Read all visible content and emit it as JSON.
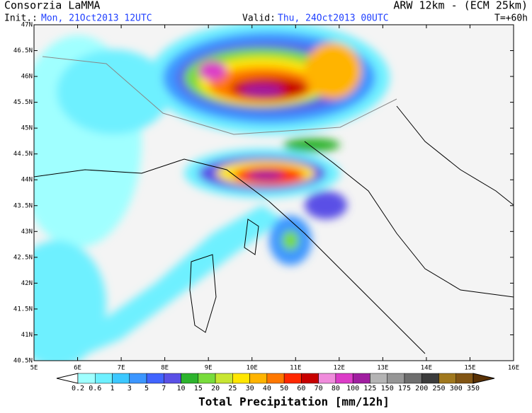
{
  "header": {
    "org": "Consorzia LaMMA",
    "model": "ARW 12km - (ECM 25km)",
    "init_label": "Init.:",
    "init": "Mon, 21Oct2013 12UTC",
    "valid_label": "Valid:",
    "valid": "Thu, 24Oct2013 00UTC",
    "step": "T=+60h"
  },
  "map": {
    "lat_labels": [
      "47N",
      "46.5N",
      "46N",
      "45.5N",
      "45N",
      "44.5N",
      "44N",
      "43.5N",
      "43N",
      "42.5N",
      "42N",
      "41.5N",
      "41N",
      "40.5N"
    ],
    "lon_labels": [
      "5E",
      "6E",
      "7E",
      "8E",
      "9E",
      "10E",
      "11E",
      "12E",
      "13E",
      "14E",
      "15E",
      "16E"
    ]
  },
  "legend": {
    "title": "Total Precipitation [mm/12h]",
    "levels": [
      "0.2",
      "0.6",
      "1",
      "3",
      "5",
      "7",
      "10",
      "15",
      "20",
      "25",
      "30",
      "40",
      "50",
      "60",
      "70",
      "80",
      "100",
      "125",
      "150",
      "175",
      "200",
      "250",
      "300",
      "350"
    ],
    "colors": [
      "#ffffff",
      "#a0ffff",
      "#6ef0ff",
      "#3cc8ff",
      "#3c96ff",
      "#4164ff",
      "#5a50e6",
      "#2db42d",
      "#78dc3c",
      "#c8e632",
      "#ffe600",
      "#ffb400",
      "#ff7800",
      "#ff2800",
      "#c80000",
      "#f08cdc",
      "#dc3cc8",
      "#a01ea0",
      "#b4b4b4",
      "#969696",
      "#6e6e6e",
      "#3c3c3c",
      "#a0781e",
      "#825514",
      "#5a3205"
    ]
  }
}
